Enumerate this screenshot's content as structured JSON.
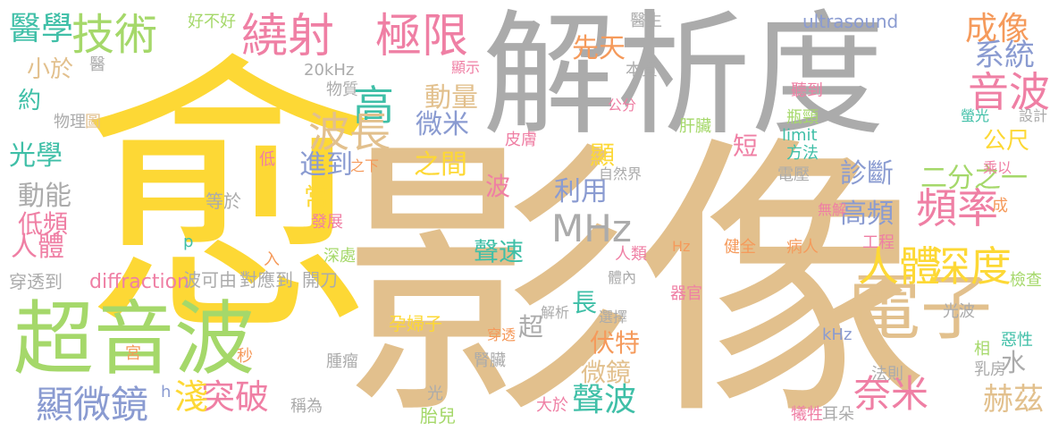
{
  "colors": {
    "yellow": "#FDD835",
    "tan": "#E2C08D",
    "gray": "#ABABAB",
    "green": "#A5D86A",
    "pink": "#EF7FA4",
    "blue": "#8A9BD1",
    "teal": "#3FBFA7",
    "orange": "#F59A5B"
  },
  "words": [
    {
      "text": "愈",
      "color": "yellow"
    },
    {
      "text": "影像",
      "color": "tan"
    },
    {
      "text": "解析度",
      "color": "gray"
    },
    {
      "text": "超音波",
      "color": "green"
    },
    {
      "text": "電子",
      "color": "tan"
    },
    {
      "text": "繞射",
      "color": "pink"
    },
    {
      "text": "極限",
      "color": "pink"
    },
    {
      "text": "技術",
      "color": "green"
    },
    {
      "text": "高",
      "color": "teal"
    },
    {
      "text": "波長",
      "color": "tan"
    },
    {
      "text": "頻率",
      "color": "pink"
    },
    {
      "text": "人體",
      "color": "yellow"
    },
    {
      "text": "深度",
      "color": "yellow"
    },
    {
      "text": "音波",
      "color": "pink"
    },
    {
      "text": "成像",
      "color": "orange"
    },
    {
      "text": "系統",
      "color": "blue"
    },
    {
      "text": "醫學",
      "color": "teal"
    },
    {
      "text": "MHz",
      "color": "gray"
    },
    {
      "text": "奈米",
      "color": "pink"
    },
    {
      "text": "顯微鏡",
      "color": "blue"
    },
    {
      "text": "突破",
      "color": "pink"
    },
    {
      "text": "淺",
      "color": "yellow"
    },
    {
      "text": "聲波",
      "color": "teal"
    },
    {
      "text": "赫茲",
      "color": "tan"
    },
    {
      "text": "動量",
      "color": "tan"
    },
    {
      "text": "微米",
      "color": "blue"
    },
    {
      "text": "先天",
      "color": "orange"
    },
    {
      "text": "診斷",
      "color": "blue"
    },
    {
      "text": "二分之一",
      "color": "green"
    },
    {
      "text": "高頻",
      "color": "blue"
    },
    {
      "text": "利用",
      "color": "blue"
    },
    {
      "text": "進到",
      "color": "blue"
    },
    {
      "text": "之間",
      "color": "yellow"
    },
    {
      "text": "光學",
      "color": "teal"
    },
    {
      "text": "動能",
      "color": "gray"
    },
    {
      "text": "人體",
      "color": "pink"
    },
    {
      "text": "低頻",
      "color": "pink"
    },
    {
      "text": "聲速",
      "color": "teal"
    },
    {
      "text": "伏特",
      "color": "orange"
    },
    {
      "text": "微鏡",
      "color": "tan"
    },
    {
      "text": "公尺",
      "color": "yellow"
    },
    {
      "text": "約",
      "color": "teal"
    },
    {
      "text": "小於",
      "color": "tan"
    },
    {
      "text": "20kHz",
      "color": "gray"
    },
    {
      "text": "物質",
      "color": "gray"
    },
    {
      "text": "ultrasound",
      "color": "blue"
    },
    {
      "text": "diffraction",
      "color": "pink"
    },
    {
      "text": "limit",
      "color": "teal"
    },
    {
      "text": "穿透到",
      "color": "gray"
    },
    {
      "text": "對應到",
      "color": "gray"
    },
    {
      "text": "開刀",
      "color": "gray"
    },
    {
      "text": "波可由",
      "color": "gray"
    },
    {
      "text": "孕婦子",
      "color": "yellow"
    },
    {
      "text": "腎臟",
      "color": "gray"
    },
    {
      "text": "胎兒",
      "color": "green"
    },
    {
      "text": "大於",
      "color": "pink"
    },
    {
      "text": "光波",
      "color": "gray"
    },
    {
      "text": "檢查",
      "color": "green"
    },
    {
      "text": "惡性",
      "color": "teal"
    },
    {
      "text": "乳房",
      "color": "gray"
    },
    {
      "text": "耳朵",
      "color": "gray"
    },
    {
      "text": "犧牲",
      "color": "pink"
    },
    {
      "text": "法則",
      "color": "gray"
    },
    {
      "text": "稱為",
      "color": "gray"
    },
    {
      "text": "腫瘤",
      "color": "gray"
    },
    {
      "text": "秒",
      "color": "orange"
    },
    {
      "text": "宮",
      "color": "orange"
    },
    {
      "text": "h",
      "color": "blue"
    },
    {
      "text": "光",
      "color": "gray"
    },
    {
      "text": "發展",
      "color": "pink"
    },
    {
      "text": "深處",
      "color": "green"
    },
    {
      "text": "等於",
      "color": "gray"
    },
    {
      "text": "低",
      "color": "pink"
    },
    {
      "text": "p",
      "color": "teal"
    },
    {
      "text": "入",
      "color": "orange"
    },
    {
      "text": "物理",
      "color": "gray"
    },
    {
      "text": "圖",
      "color": "tan"
    },
    {
      "text": "醫",
      "color": "gray"
    },
    {
      "text": "好不好",
      "color": "green"
    },
    {
      "text": "顯示",
      "color": "pink"
    },
    {
      "text": "公分",
      "color": "pink"
    },
    {
      "text": "本質",
      "color": "gray"
    },
    {
      "text": "醫生",
      "color": "gray"
    },
    {
      "text": "聽到",
      "color": "pink"
    },
    {
      "text": "瓶頸",
      "color": "green"
    },
    {
      "text": "方法",
      "color": "teal"
    },
    {
      "text": "螢光",
      "color": "teal"
    },
    {
      "text": "設計",
      "color": "gray"
    },
    {
      "text": "乘以",
      "color": "pink"
    },
    {
      "text": "肝臟",
      "color": "green"
    },
    {
      "text": "皮膚",
      "color": "pink"
    },
    {
      "text": "自然界",
      "color": "gray"
    },
    {
      "text": "電壓",
      "color": "gray"
    },
    {
      "text": "無解",
      "color": "pink"
    },
    {
      "text": "成",
      "color": "orange"
    },
    {
      "text": "工程",
      "color": "pink"
    },
    {
      "text": "病人",
      "color": "orange"
    },
    {
      "text": "健全",
      "color": "orange"
    },
    {
      "text": "Hz",
      "color": "orange"
    },
    {
      "text": "人類",
      "color": "pink"
    },
    {
      "text": "體內",
      "color": "gray"
    },
    {
      "text": "器官",
      "color": "pink"
    },
    {
      "text": "選擇",
      "color": "gray"
    },
    {
      "text": "解析",
      "color": "gray"
    },
    {
      "text": "穿透",
      "color": "orange"
    },
    {
      "text": "相",
      "color": "green"
    },
    {
      "text": "kHz",
      "color": "blue"
    },
    {
      "text": "波",
      "color": "pink"
    },
    {
      "text": "短",
      "color": "pink"
    },
    {
      "text": "顯",
      "color": "yellow"
    },
    {
      "text": "常",
      "color": "yellow"
    },
    {
      "text": "之下",
      "color": "orange"
    },
    {
      "text": "長",
      "color": "teal"
    },
    {
      "text": "超",
      "color": "gray"
    },
    {
      "text": "水",
      "color": "gray"
    }
  ]
}
